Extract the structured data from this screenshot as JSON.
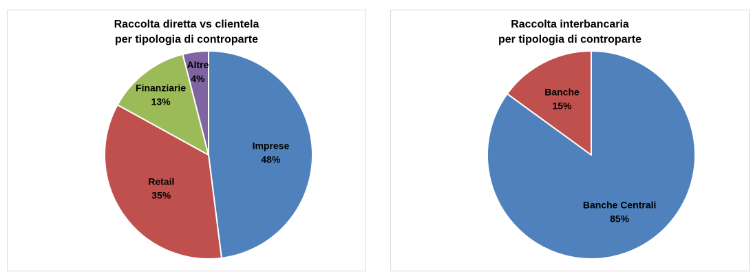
{
  "chart_data": [
    {
      "type": "pie",
      "title": [
        "Raccolta diretta vs clientela",
        "per tipologia di controparte"
      ],
      "slices": [
        {
          "label": "Imprese",
          "value": 48,
          "pct_label": "48%",
          "color": "#4f81bd"
        },
        {
          "label": "Retail",
          "value": 35,
          "pct_label": "35%",
          "color": "#c0504d"
        },
        {
          "label": "Finanziarie",
          "value": 13,
          "pct_label": "13%",
          "color": "#9bbb59"
        },
        {
          "label": "Altre",
          "value": 4,
          "pct_label": "4%",
          "color": "#8064a2"
        }
      ],
      "start_angle": "12 o'clock, clockwise",
      "legend": "none"
    },
    {
      "type": "pie",
      "title": [
        "Raccolta interbancaria",
        "per tipologia di controparte"
      ],
      "slices": [
        {
          "label": "Banche Centrali",
          "value": 85,
          "pct_label": "85%",
          "color": "#4f81bd"
        },
        {
          "label": "Banche",
          "value": 15,
          "pct_label": "15%",
          "color": "#c0504d"
        }
      ],
      "start_angle": "12 o'clock, clockwise",
      "legend": "none"
    }
  ]
}
